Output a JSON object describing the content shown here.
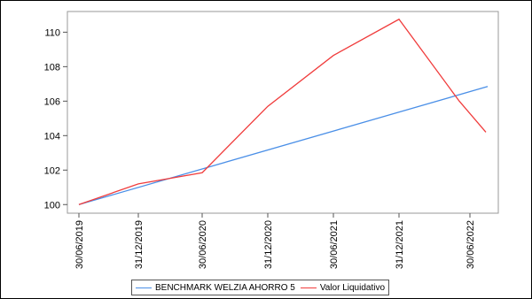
{
  "chart_data": {
    "type": "line",
    "x": [
      "30/06/2019",
      "31/12/2019",
      "30/06/2020",
      "31/12/2020",
      "30/06/2021",
      "31/12/2021",
      "30/06/2022"
    ],
    "x_tick_labels": [
      "30/06/2019",
      "31/12/2019",
      "30/06/2020",
      "31/12/2020",
      "30/06/2021",
      "31/12/2021",
      "30/06/2022"
    ],
    "y_ticks": [
      100,
      102,
      104,
      106,
      108,
      110
    ],
    "ylim": [
      99.5,
      111.2
    ],
    "grid": false,
    "legend_placement": "bottom",
    "series": [
      {
        "name": "BENCHMARK WELZIA AHORRO 5",
        "color": "#4a8fe7",
        "points": [
          {
            "x": "30/06/2019",
            "y": 100.0
          },
          {
            "x": "30/06/2022",
            "y": 106.85
          }
        ]
      },
      {
        "name": "Valor Liquidativo",
        "color": "#f03c3c",
        "points": [
          {
            "x": "30/06/2019",
            "y": 100.0
          },
          {
            "x": "31/12/2019",
            "y": 101.2
          },
          {
            "x": "30/06/2020",
            "y": 101.85
          },
          {
            "x": "31/12/2020",
            "y": 105.7
          },
          {
            "x": "30/06/2021",
            "y": 108.65
          },
          {
            "x": "31/12/2021",
            "y": 110.75
          },
          {
            "x": "30/06/2022",
            "y": 106.0
          },
          {
            "x": "30/06/2022",
            "y": 104.2
          }
        ]
      }
    ]
  }
}
